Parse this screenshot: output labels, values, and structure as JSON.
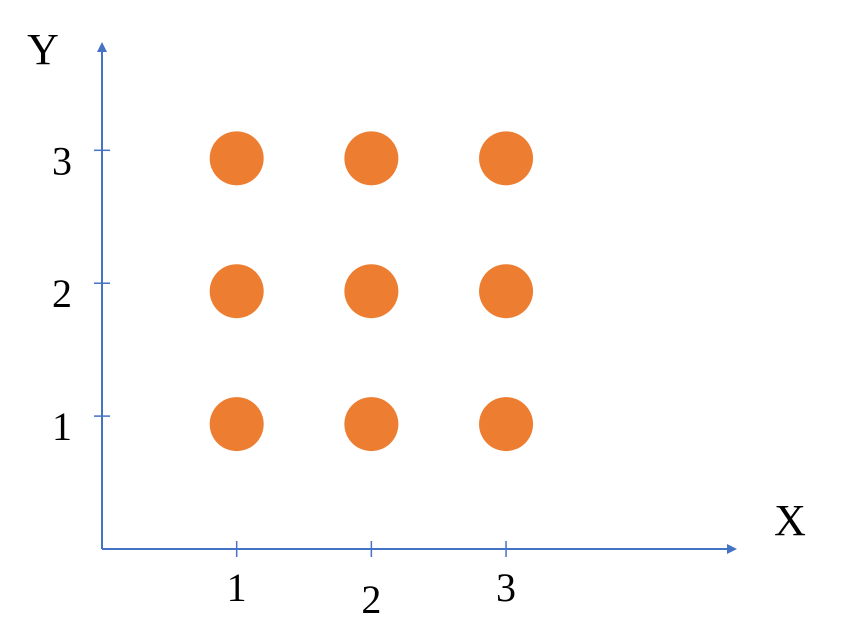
{
  "chart_data": {
    "type": "scatter",
    "xlabel": "X",
    "ylabel": "Y",
    "x_ticks": [
      "1",
      "2",
      "3"
    ],
    "y_ticks": [
      "1",
      "2",
      "3"
    ],
    "points": [
      {
        "x": 1,
        "y": 1
      },
      {
        "x": 2,
        "y": 1
      },
      {
        "x": 3,
        "y": 1
      },
      {
        "x": 1,
        "y": 2
      },
      {
        "x": 2,
        "y": 2
      },
      {
        "x": 3,
        "y": 2
      },
      {
        "x": 1,
        "y": 3
      },
      {
        "x": 2,
        "y": 3
      },
      {
        "x": 3,
        "y": 3
      }
    ],
    "xlim": [
      0,
      4.7
    ],
    "ylim": [
      0,
      3.8
    ],
    "grid": false,
    "legend": "none",
    "colors": {
      "axis": "#4472C4",
      "point": "#ED7D31"
    }
  }
}
